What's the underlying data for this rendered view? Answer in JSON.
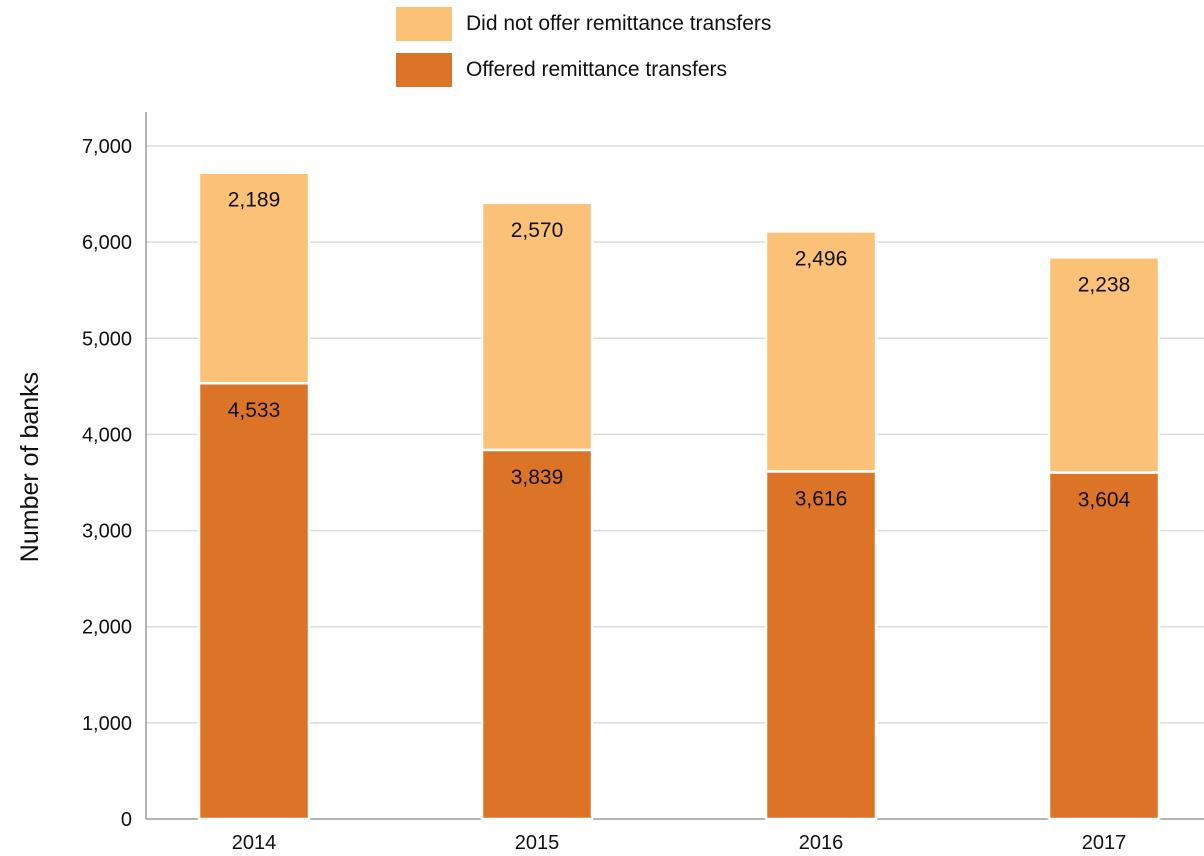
{
  "chart_data": {
    "type": "bar",
    "stacked": true,
    "categories": [
      "2014",
      "2015",
      "2016",
      "2017"
    ],
    "series": [
      {
        "name": "Offered remittance transfers",
        "values": [
          4533,
          3839,
          3616,
          3604
        ],
        "value_labels": [
          "4,533",
          "3,839",
          "3,616",
          "3,604"
        ],
        "color": "#dc7428"
      },
      {
        "name": "Did not offer remittance transfers",
        "values": [
          2189,
          2570,
          2496,
          2238
        ],
        "value_labels": [
          "2,189",
          "2,570",
          "2,496",
          "2,238"
        ],
        "color": "#fbc177"
      }
    ],
    "title": "",
    "xlabel": "",
    "ylabel": "Number of banks",
    "ylim": [
      0,
      7000
    ],
    "yticks": [
      0,
      1000,
      2000,
      3000,
      4000,
      5000,
      6000,
      7000
    ],
    "ytick_labels": [
      "0",
      "1,000",
      "2,000",
      "3,000",
      "4,000",
      "5,000",
      "6,000",
      "7,000"
    ],
    "grid": "horizontal",
    "legend_position": "top-center",
    "legend_order": [
      "Did not offer remittance transfers",
      "Offered remittance transfers"
    ]
  }
}
